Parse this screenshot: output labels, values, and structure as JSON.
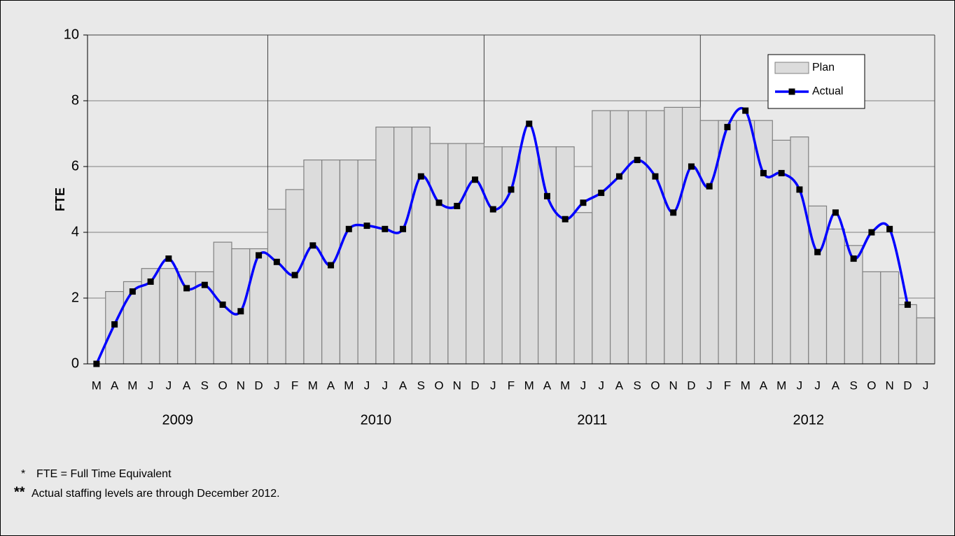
{
  "chart_data": {
    "type": "bar_line",
    "y_label": "FTE",
    "categories": [
      "M",
      "A",
      "M",
      "J",
      "J",
      "A",
      "S",
      "O",
      "N",
      "D",
      "J",
      "F",
      "M",
      "A",
      "M",
      "J",
      "J",
      "A",
      "S",
      "O",
      "N",
      "D",
      "J",
      "F",
      "M",
      "A",
      "M",
      "J",
      "J",
      "A",
      "S",
      "O",
      "N",
      "D",
      "J",
      "F",
      "M",
      "A",
      "M",
      "J",
      "J",
      "A",
      "S",
      "O",
      "N",
      "D",
      "J"
    ],
    "year_labels": [
      "2009",
      "2010",
      "2011",
      "2012"
    ],
    "series": [
      {
        "name": "Plan",
        "type": "bar",
        "color": "#dcdcdc",
        "values": [
          0,
          2.2,
          2.5,
          2.9,
          2.9,
          2.8,
          2.8,
          3.7,
          3.5,
          3.5,
          4.7,
          5.3,
          6.2,
          6.2,
          6.2,
          6.2,
          7.2,
          7.2,
          7.2,
          6.7,
          6.7,
          6.7,
          6.6,
          6.6,
          6.6,
          6.6,
          6.6,
          4.6,
          7.7,
          7.7,
          7.7,
          7.7,
          7.8,
          7.8,
          7.4,
          7.4,
          7.4,
          7.4,
          6.8,
          6.9,
          4.8,
          4.1,
          3.6,
          2.8,
          2.8,
          1.8,
          1.4
        ]
      },
      {
        "name": "Actual",
        "type": "line",
        "color": "#0000ff",
        "values": [
          0,
          1.2,
          2.2,
          2.5,
          3.2,
          2.3,
          2.4,
          1.8,
          1.6,
          3.3,
          3.1,
          2.7,
          3.6,
          3.0,
          4.1,
          4.2,
          4.1,
          4.1,
          5.7,
          4.9,
          4.8,
          5.6,
          4.7,
          5.3,
          7.3,
          5.1,
          4.4,
          4.9,
          5.2,
          5.7,
          6.2,
          5.7,
          4.6,
          6.0,
          5.4,
          7.2,
          7.7,
          5.8,
          5.8,
          5.3,
          3.4,
          4.6,
          3.2,
          4.0,
          4.1,
          1.8,
          null
        ]
      }
    ],
    "ylim": [
      0,
      10
    ],
    "yticks": [
      0,
      2,
      4,
      6,
      8,
      10
    ],
    "grid": true,
    "legend": "top-right",
    "footnotes": [
      {
        "marker": "*",
        "text": "FTE = Full Time Equivalent"
      },
      {
        "marker": "**",
        "text": "Actual staffing levels are through December 2012."
      }
    ]
  }
}
